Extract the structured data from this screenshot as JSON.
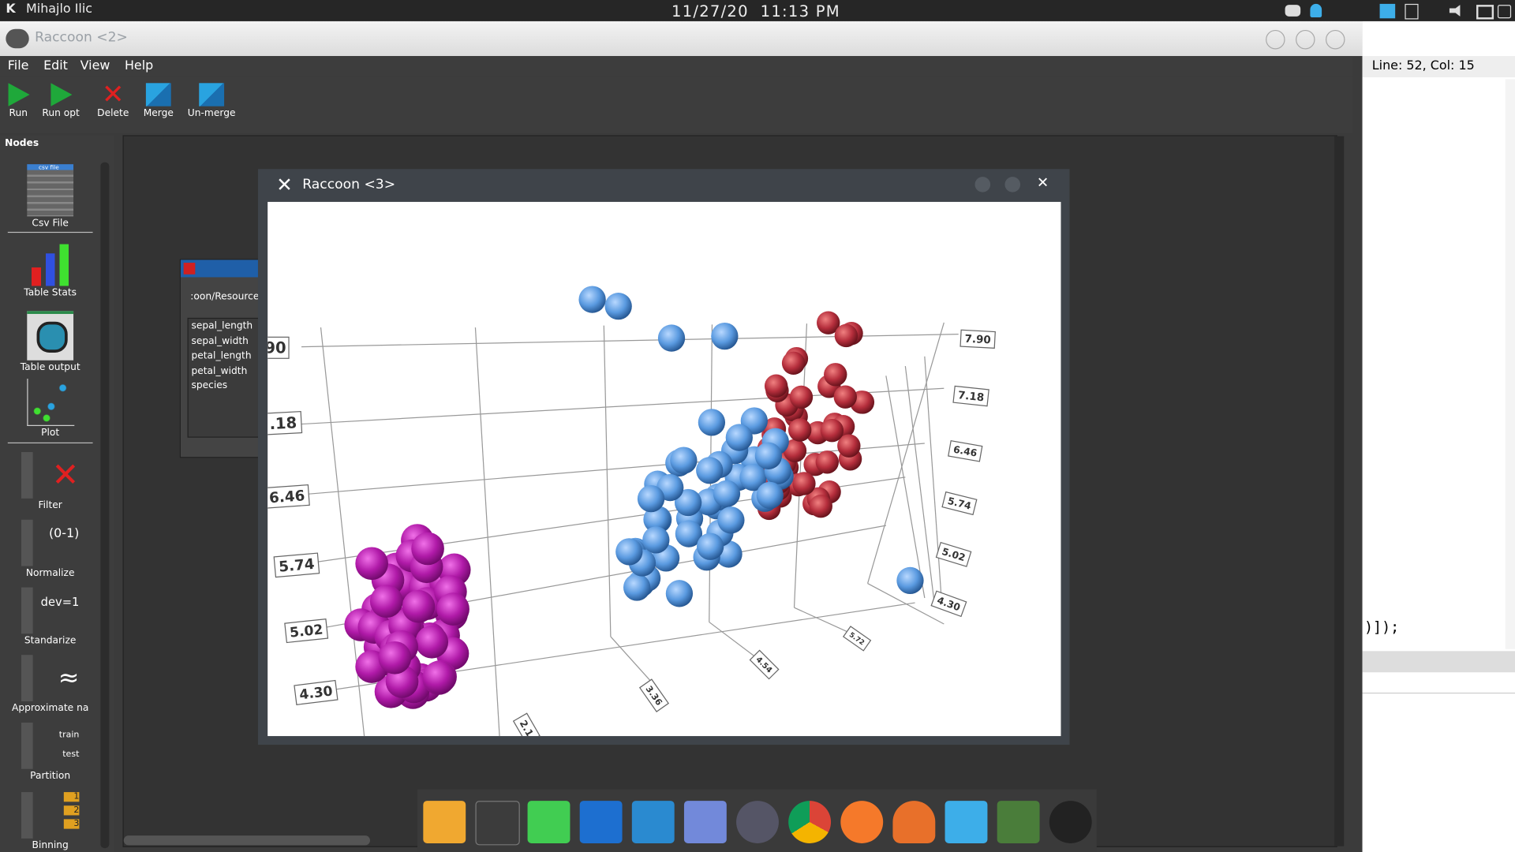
{
  "topbar": {
    "user": "Mihajlo Ilic",
    "date": "11/27/20",
    "time": "11:13 PM"
  },
  "main_window": {
    "title": "Raccoon <2>",
    "menu": [
      "File",
      "Edit",
      "View",
      "Help"
    ],
    "toolbar": [
      "Run",
      "Run opt",
      "Delete",
      "Merge",
      "Un-merge"
    ],
    "nodes_label": "Nodes",
    "nodes": [
      "Csv File",
      "Table Stats",
      "Table output",
      "Plot",
      "Filter",
      "Normalize",
      "Standarize",
      "Approximate na",
      "Partition",
      "Binning"
    ],
    "node_icon_texts": {
      "csv": "csv file",
      "normalize": "(0-1)",
      "standarize": "dev=1",
      "train": "train",
      "test": "test",
      "bins": [
        "1",
        "2",
        "3"
      ]
    }
  },
  "csv_dialog": {
    "path": ":oon/Resource",
    "columns": [
      "sepal_length",
      "sepal_width",
      "petal_length",
      "petal_width",
      "species"
    ]
  },
  "plot_window": {
    "title": "Raccoon <3>",
    "left_axis_labels": [
      "90",
      ".18",
      "6.46",
      "5.74",
      "5.02",
      "4.30"
    ],
    "right_axis_labels": [
      "7.90",
      "7.18",
      "6.46",
      "5.74",
      "5.02",
      "4.30"
    ],
    "floor_labels": [
      "2.1",
      "3.36",
      "4.54",
      "5.72"
    ]
  },
  "editor": {
    "status": "Line: 52, Col: 15",
    "code": ")]);"
  }
}
